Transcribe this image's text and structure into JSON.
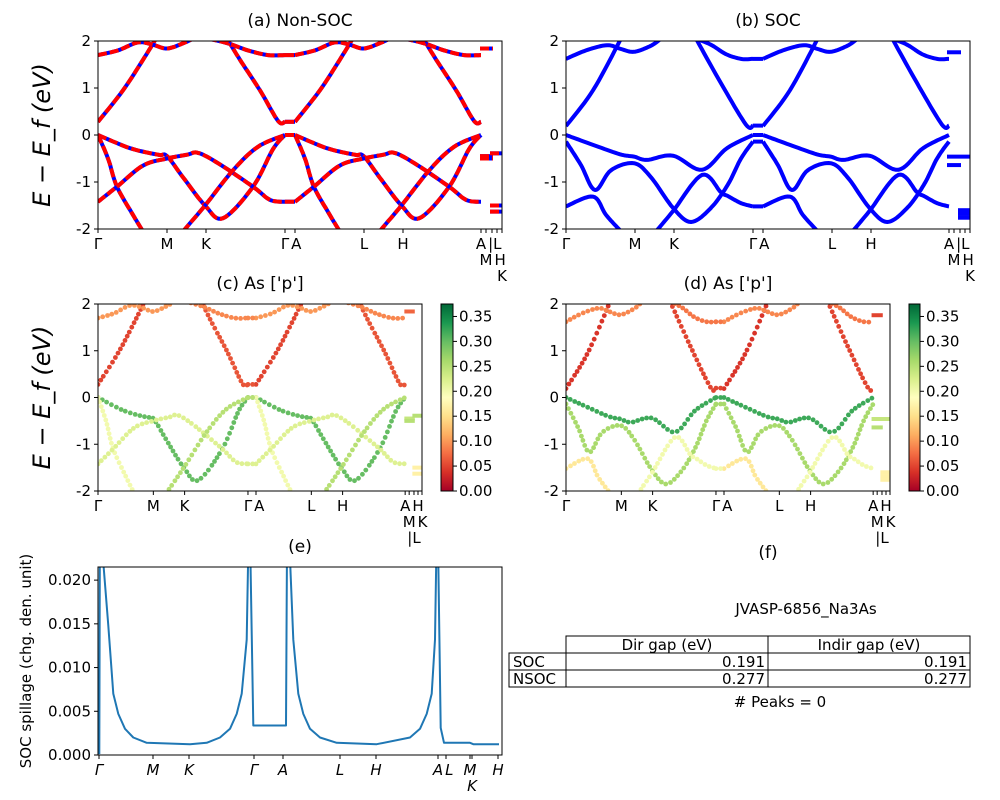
{
  "chart_data": [
    {
      "id": "a",
      "type": "line",
      "title": "(a) Non-SOC",
      "ylabel": "E − E_f (eV)",
      "ylim": [
        -2,
        2
      ],
      "yticks": [
        2,
        1,
        0,
        -1,
        -2
      ],
      "xlim": [
        0,
        4.04
      ],
      "xticks": [
        [
          0,
          "Γ"
        ],
        [
          0.69,
          "M"
        ],
        [
          1.08,
          "K"
        ],
        [
          1.87,
          "Γ"
        ],
        [
          1.97,
          "A"
        ],
        [
          2.66,
          "L"
        ],
        [
          3.05,
          "H"
        ],
        [
          3.83,
          "A"
        ],
        [
          3.88,
          "M"
        ],
        [
          3.94,
          "|L"
        ],
        [
          3.99,
          "H"
        ],
        [
          4.04,
          "K"
        ]
      ],
      "style": "dashed-red-blue",
      "colors": {
        "line": "#0000ff",
        "dash": "#ff0000"
      },
      "segments": [
        [
          "Γ",
          "M",
          "K",
          "Γ"
        ],
        [
          "A",
          "L",
          "H",
          "A"
        ]
      ],
      "bands": [
        {
          "k_E": [
            [
              0,
              0
            ],
            [
              0.32,
              -0.28
            ],
            [
              0.6,
              -0.42
            ],
            [
              0.69,
              -0.45
            ],
            [
              0.85,
              -0.9
            ],
            [
              1.07,
              -1.5
            ],
            [
              1.25,
              -1.77
            ],
            [
              1.55,
              -1.1
            ],
            [
              1.75,
              -0.3
            ],
            [
              1.87,
              0
            ]
          ]
        },
        {
          "k_E": [
            [
              0,
              0
            ],
            [
              0.1,
              -0.5
            ],
            [
              0.19,
              -1.1
            ],
            [
              0.35,
              -1.7
            ],
            [
              0.45,
              -2.05
            ]
          ]
        },
        {
          "k_E": [
            [
              0,
              -1.42
            ],
            [
              0.19,
              -1.1
            ],
            [
              0.45,
              -0.65
            ],
            [
              0.69,
              -0.5
            ],
            [
              0.89,
              -0.42
            ],
            [
              1.0,
              -0.38
            ],
            [
              1.2,
              -0.6
            ],
            [
              1.55,
              -1.1
            ],
            [
              1.72,
              -1.38
            ],
            [
              1.87,
              -1.42
            ]
          ]
        },
        {
          "k_E": [
            [
              0.85,
              -2.05
            ],
            [
              1.07,
              -1.5
            ],
            [
              1.35,
              -0.75
            ],
            [
              1.6,
              -0.25
            ],
            [
              1.87,
              0
            ]
          ]
        },
        {
          "k_E": [
            [
              0,
              0.28
            ],
            [
              0.25,
              0.95
            ],
            [
              0.45,
              1.6
            ],
            [
              0.58,
              2.05
            ]
          ]
        },
        {
          "k_E": [
            [
              1.29,
              2.05
            ],
            [
              1.42,
              1.6
            ],
            [
              1.62,
              0.95
            ],
            [
              1.8,
              0.3
            ],
            [
              1.87,
              0.28
            ]
          ]
        },
        {
          "k_E": [
            [
              0,
              1.7
            ],
            [
              0.2,
              1.8
            ],
            [
              0.4,
              1.97
            ],
            [
              0.55,
              1.92
            ],
            [
              0.69,
              1.84
            ],
            [
              0.85,
              1.95
            ],
            [
              0.95,
              2.05
            ]
          ]
        },
        {
          "k_E": [
            [
              1.1,
              2.05
            ],
            [
              1.3,
              1.95
            ],
            [
              1.5,
              1.8
            ],
            [
              1.7,
              1.7
            ],
            [
              1.87,
              1.7
            ]
          ]
        }
      ],
      "tail_bands": [
        {
          "k": [
            3.82,
            3.95
          ],
          "E": 1.84
        },
        {
          "k": [
            3.82,
            3.95
          ],
          "E": -0.45
        },
        {
          "k": [
            3.82,
            3.95
          ],
          "E": -0.5
        },
        {
          "k": [
            3.92,
            4.04
          ],
          "E": -0.39
        },
        {
          "k": [
            3.92,
            4.04
          ],
          "E": -1.5
        },
        {
          "k": [
            3.92,
            4.04
          ],
          "E": -1.63
        }
      ]
    },
    {
      "id": "b",
      "type": "line",
      "title": "(b) SOC",
      "ylabel": "",
      "ylim": [
        -2,
        2
      ],
      "yticks": [
        2,
        1,
        0,
        -1,
        -2
      ],
      "xlim": [
        0,
        4.04
      ],
      "xticks": [
        [
          0,
          "Γ"
        ],
        [
          0.69,
          "M"
        ],
        [
          1.08,
          "K"
        ],
        [
          1.87,
          "Γ"
        ],
        [
          1.97,
          "A"
        ],
        [
          2.66,
          "L"
        ],
        [
          3.05,
          "H"
        ],
        [
          3.83,
          "A"
        ],
        [
          3.88,
          "M"
        ],
        [
          3.94,
          "|L"
        ],
        [
          3.99,
          "H"
        ],
        [
          4.04,
          "K"
        ]
      ],
      "style": "solid",
      "colors": {
        "line": "#0000ff"
      },
      "segments": [
        [
          "Γ",
          "M",
          "K",
          "Γ"
        ],
        [
          "A",
          "L",
          "H",
          "A"
        ]
      ],
      "bands": [
        {
          "k_E": [
            [
              0,
              0
            ],
            [
              0.27,
              -0.21
            ],
            [
              0.54,
              -0.41
            ],
            [
              0.68,
              -0.46
            ],
            [
              0.81,
              -0.53
            ],
            [
              1.07,
              -0.44
            ],
            [
              1.36,
              -0.74
            ],
            [
              1.61,
              -0.28
            ],
            [
              1.87,
              0
            ]
          ]
        },
        {
          "k_E": [
            [
              0,
              -0.14
            ],
            [
              0.15,
              -0.64
            ],
            [
              0.29,
              -1.17
            ],
            [
              0.45,
              -0.75
            ],
            [
              0.68,
              -0.6
            ],
            [
              0.85,
              -0.9
            ],
            [
              1.07,
              -1.55
            ],
            [
              1.25,
              -1.85
            ],
            [
              1.45,
              -1.55
            ],
            [
              1.62,
              -1.05
            ],
            [
              1.75,
              -0.5
            ],
            [
              1.87,
              -0.14
            ]
          ]
        },
        {
          "k_E": [
            [
              0,
              -1.52
            ],
            [
              0.27,
              -1.31
            ],
            [
              0.4,
              -1.7
            ],
            [
              0.55,
              -2.05
            ]
          ]
        },
        {
          "k_E": [
            [
              0.9,
              -2.05
            ],
            [
              1.07,
              -1.62
            ],
            [
              1.36,
              -0.85
            ],
            [
              1.55,
              -1.22
            ],
            [
              1.62,
              -1.3
            ],
            [
              1.75,
              -1.45
            ],
            [
              1.87,
              -1.52
            ]
          ]
        },
        {
          "k_E": [
            [
              0,
              0.19
            ],
            [
              0.27,
              0.95
            ],
            [
              0.55,
              2.05
            ]
          ]
        },
        {
          "k_E": [
            [
              1.3,
              2.05
            ],
            [
              1.55,
              1.1
            ],
            [
              1.8,
              0.22
            ],
            [
              1.87,
              0.2
            ]
          ]
        },
        {
          "k_E": [
            [
              0,
              1.62
            ],
            [
              0.2,
              1.8
            ],
            [
              0.41,
              1.91
            ],
            [
              0.55,
              1.83
            ],
            [
              0.68,
              1.77
            ],
            [
              0.85,
              1.9
            ],
            [
              0.95,
              2.05
            ]
          ]
        },
        {
          "k_E": [
            [
              1.3,
              2.05
            ],
            [
              1.45,
              1.92
            ],
            [
              1.6,
              1.72
            ],
            [
              1.75,
              1.62
            ],
            [
              1.87,
              1.62
            ]
          ]
        }
      ],
      "tail_bands": [
        {
          "k": [
            3.81,
            3.95
          ],
          "E": 1.76
        },
        {
          "k": [
            3.81,
            4.04
          ],
          "E": -0.46
        },
        {
          "k": [
            3.81,
            3.95
          ],
          "E": -0.64
        },
        {
          "k": [
            3.92,
            4.04
          ],
          "E": -1.6
        },
        {
          "k": [
            3.92,
            4.04
          ],
          "E": -1.68
        },
        {
          "k": [
            3.92,
            4.04
          ],
          "E": -1.76
        }
      ]
    },
    {
      "id": "c",
      "type": "scatter",
      "title": "(c)  As ['p']",
      "ylabel": "E − E_f (eV)",
      "ylim": [
        -2,
        2
      ],
      "yticks": [
        2,
        1,
        0,
        -1,
        -2
      ],
      "xlim": [
        0,
        4.04
      ],
      "xticks": [
        [
          0,
          "Γ"
        ],
        [
          0.69,
          "M"
        ],
        [
          1.08,
          "K"
        ],
        [
          1.87,
          "Γ"
        ],
        [
          1.97,
          "A"
        ],
        [
          2.66,
          "L"
        ],
        [
          3.05,
          "H"
        ],
        [
          3.83,
          "A"
        ],
        [
          3.88,
          "M"
        ],
        [
          3.94,
          "|L"
        ],
        [
          3.99,
          "H"
        ],
        [
          4.04,
          "K"
        ]
      ],
      "colormap": "RdYlGn",
      "colorbar": {
        "range": [
          0,
          0.375
        ],
        "ticks": [
          "0.00",
          "0.05",
          "0.10",
          "0.15",
          "0.20",
          "0.25",
          "0.30",
          "0.35"
        ]
      },
      "band_source": "a",
      "band_weights": [
        0.3,
        0.2,
        0.22,
        0.25,
        0.05,
        0.06,
        0.1,
        0.09
      ],
      "tail_weights": [
        0.07,
        0.24,
        0.25,
        0.25,
        0.17,
        0.17
      ]
    },
    {
      "id": "d",
      "type": "scatter",
      "title": "(d) As ['p']",
      "ylabel": "",
      "ylim": [
        -2,
        2
      ],
      "yticks": [
        2,
        1,
        0,
        -1,
        -2
      ],
      "xlim": [
        0,
        4.04
      ],
      "xticks": [
        [
          0,
          "Γ"
        ],
        [
          0.69,
          "M"
        ],
        [
          1.08,
          "K"
        ],
        [
          1.87,
          "Γ"
        ],
        [
          1.97,
          "A"
        ],
        [
          2.66,
          "L"
        ],
        [
          3.05,
          "H"
        ],
        [
          3.83,
          "A"
        ],
        [
          3.88,
          "M"
        ],
        [
          3.94,
          "|L"
        ],
        [
          3.99,
          "H"
        ],
        [
          4.04,
          "K"
        ]
      ],
      "colormap": "RdYlGn",
      "colorbar": {
        "range": [
          0,
          0.375
        ],
        "ticks": [
          "0.00",
          "0.05",
          "0.10",
          "0.15",
          "0.20",
          "0.25",
          "0.30",
          "0.35"
        ]
      },
      "band_source": "b",
      "band_weights": [
        0.32,
        0.26,
        0.16,
        0.2,
        0.04,
        0.05,
        0.09,
        0.08
      ],
      "tail_weights": [
        0.05,
        0.24,
        0.25,
        0.17,
        0.17,
        0.17
      ]
    },
    {
      "id": "e",
      "type": "line",
      "title": "(e)",
      "ylabel": "SOC spillage (chg. den. unit)",
      "ylim": [
        0,
        0.0215
      ],
      "yticks": [
        "0.000",
        "0.005",
        "0.010",
        "0.015",
        "0.020"
      ],
      "xlim": [
        0,
        4.04
      ],
      "xticks": [
        [
          0.01,
          "Γ"
        ],
        [
          0.55,
          "M"
        ],
        [
          0.91,
          "K"
        ],
        [
          1.56,
          "Γ"
        ],
        [
          1.85,
          "A"
        ],
        [
          2.42,
          "L"
        ],
        [
          2.78,
          "H"
        ],
        [
          3.4,
          "A"
        ],
        [
          3.48,
          "L"
        ],
        [
          3.72,
          "M"
        ],
        [
          3.74,
          "K"
        ],
        [
          4.0,
          "H"
        ]
      ],
      "colors": {
        "line": "#1f77b4"
      },
      "x": [
        0.013,
        0.02,
        0.053,
        0.103,
        0.153,
        0.203,
        0.27,
        0.353,
        0.487,
        0.92,
        1.087,
        1.22,
        1.32,
        1.387,
        1.437,
        1.487,
        1.513,
        1.553,
        1.88,
        1.893,
        1.953,
        2.003,
        2.053,
        2.12,
        2.22,
        2.387,
        2.787,
        3.12,
        3.22,
        3.287,
        3.337,
        3.37,
        3.393,
        3.427,
        3.46,
        3.72,
        3.753,
        4.01
      ],
      "y": [
        0.0001,
        0.03,
        0.022,
        0.0148,
        0.007,
        0.0047,
        0.003,
        0.002,
        0.0014,
        0.00124,
        0.0014,
        0.002,
        0.003,
        0.0047,
        0.007,
        0.0132,
        0.03,
        0.00337,
        0.00337,
        0.03,
        0.0132,
        0.007,
        0.0047,
        0.003,
        0.002,
        0.0014,
        0.00124,
        0.002,
        0.003,
        0.0047,
        0.007,
        0.0132,
        0.03,
        0.0031,
        0.0014,
        0.0014,
        0.00124,
        0.00124
      ]
    },
    {
      "id": "f",
      "type": "table",
      "title": "(f)",
      "subtitle": "JVASP-6856_Na3As",
      "columns": [
        "Dir gap (eV)",
        "Indir gap (eV)"
      ],
      "rows": [
        {
          "label": "SOC",
          "values": [
            "0.191",
            "0.191"
          ]
        },
        {
          "label": "NSOC",
          "values": [
            "0.277",
            "0.277"
          ]
        }
      ],
      "footer": "# Peaks = 0"
    }
  ]
}
